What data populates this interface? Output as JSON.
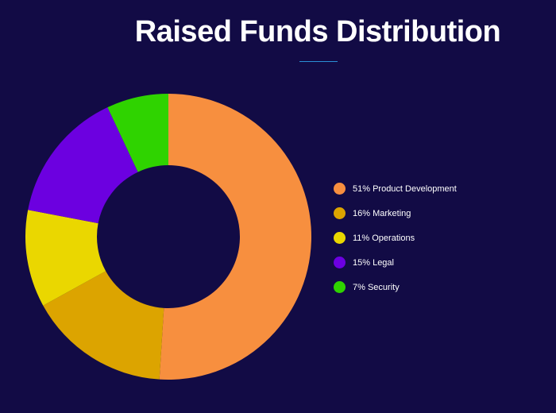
{
  "header": {
    "title": "Raised Funds Distribution"
  },
  "colors": {
    "background": "#120b45",
    "underline": "#2a8fd6"
  },
  "chart_data": {
    "type": "pie",
    "title": "Raised Funds Distribution",
    "donut": true,
    "start_angle_deg": 0,
    "categories": [
      "Product Development",
      "Marketing",
      "Operations",
      "Legal",
      "Security"
    ],
    "values": [
      51,
      16,
      11,
      15,
      7
    ],
    "series": [
      {
        "name": "Product Development",
        "value": 51,
        "label": "51% Product Development",
        "color": "#f78f3f"
      },
      {
        "name": "Marketing",
        "value": 16,
        "label": "16% Marketing",
        "color": "#dca400"
      },
      {
        "name": "Operations",
        "value": 11,
        "label": "11% Operations",
        "color": "#ead700"
      },
      {
        "name": "Legal",
        "value": 15,
        "label": "15% Legal",
        "color": "#6c00e0"
      },
      {
        "name": "Security",
        "value": 7,
        "label": "7% Security",
        "color": "#2fd300"
      }
    ],
    "legend_position": "right"
  }
}
